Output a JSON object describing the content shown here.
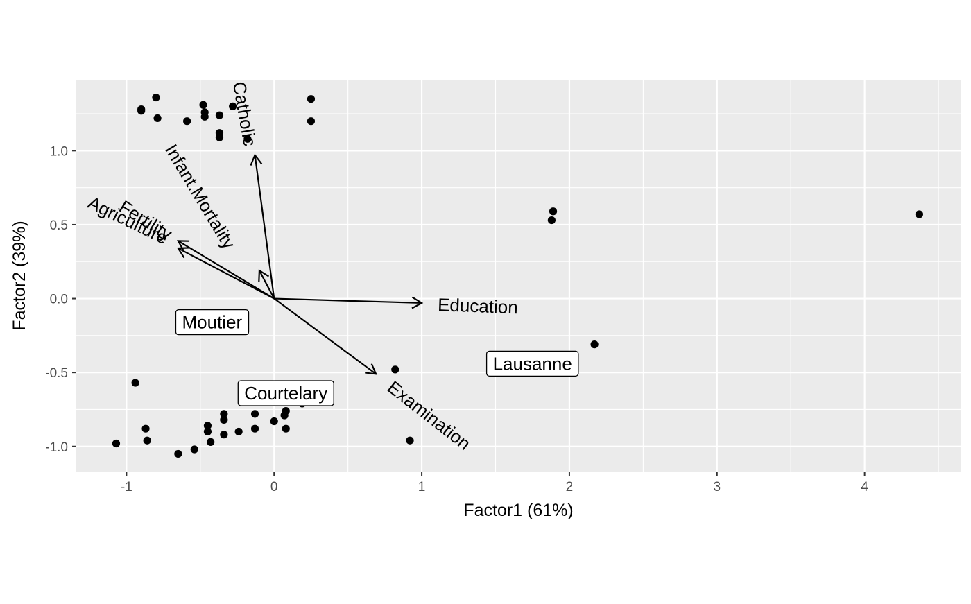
{
  "chart_data": {
    "type": "scatter",
    "subtype": "biplot",
    "title": "",
    "xlabel": "Factor1 (61%)",
    "ylabel": "Factor2 (39%)",
    "xlim": [
      -1.34,
      4.65
    ],
    "ylim": [
      -1.17,
      1.48
    ],
    "xticks": [
      -1,
      0,
      1,
      2,
      3,
      4
    ],
    "yticks": [
      -1.0,
      -0.5,
      0.0,
      0.5,
      1.0
    ],
    "xtick_labels": [
      "-1",
      "0",
      "1",
      "2",
      "3",
      "4"
    ],
    "ytick_labels": [
      "-1.0",
      "-0.5",
      "0.0",
      "0.5",
      "1.0"
    ],
    "grid": true,
    "panel_background": "#ebebeb",
    "grid_color": "#ffffff",
    "point_color": "#000000",
    "points": [
      {
        "x": -0.9,
        "y": 1.28
      },
      {
        "x": -0.9,
        "y": 1.27
      },
      {
        "x": -0.8,
        "y": 1.36
      },
      {
        "x": -0.79,
        "y": 1.22
      },
      {
        "x": -0.59,
        "y": 1.2
      },
      {
        "x": -0.48,
        "y": 1.31
      },
      {
        "x": -0.47,
        "y": 1.26
      },
      {
        "x": -0.47,
        "y": 1.23
      },
      {
        "x": -0.37,
        "y": 1.24
      },
      {
        "x": -0.37,
        "y": 1.12
      },
      {
        "x": -0.37,
        "y": 1.09
      },
      {
        "x": -0.28,
        "y": 1.3
      },
      {
        "x": -0.18,
        "y": 1.08
      },
      {
        "x": 0.25,
        "y": 1.35
      },
      {
        "x": 0.25,
        "y": 1.2
      },
      {
        "x": 1.88,
        "y": 0.53
      },
      {
        "x": 1.89,
        "y": 0.59
      },
      {
        "x": 4.37,
        "y": 0.57
      },
      {
        "x": 2.17,
        "y": -0.31
      },
      {
        "x": 0.82,
        "y": -0.48
      },
      {
        "x": 0.92,
        "y": -0.96
      },
      {
        "x": -0.94,
        "y": -0.57
      },
      {
        "x": -1.07,
        "y": -0.98
      },
      {
        "x": -0.87,
        "y": -0.88
      },
      {
        "x": -0.86,
        "y": -0.96
      },
      {
        "x": -0.65,
        "y": -1.05
      },
      {
        "x": -0.54,
        "y": -1.02
      },
      {
        "x": -0.45,
        "y": -0.86
      },
      {
        "x": -0.45,
        "y": -0.9
      },
      {
        "x": -0.43,
        "y": -0.97
      },
      {
        "x": -0.34,
        "y": -0.78
      },
      {
        "x": -0.34,
        "y": -0.82
      },
      {
        "x": -0.34,
        "y": -0.92
      },
      {
        "x": -0.24,
        "y": -0.9
      },
      {
        "x": -0.13,
        "y": -0.78
      },
      {
        "x": -0.13,
        "y": -0.88
      },
      {
        "x": 0.0,
        "y": -0.83
      },
      {
        "x": 0.07,
        "y": -0.79
      },
      {
        "x": 0.08,
        "y": -0.76
      },
      {
        "x": 0.08,
        "y": -0.88
      },
      {
        "x": 0.19,
        "y": -0.71
      }
    ],
    "loadings": [
      {
        "name": "Catholic",
        "x": -0.13,
        "y": 0.97,
        "label_x": -0.2,
        "label_y": 1.25,
        "angle": 80
      },
      {
        "name": "Infant.Mortality",
        "x": -0.1,
        "y": 0.19,
        "label_x": -0.5,
        "label_y": 0.69,
        "angle": 59
      },
      {
        "name": "Fertility",
        "x": -0.65,
        "y": 0.39,
        "label_x": -0.87,
        "label_y": 0.53,
        "angle": 32
      },
      {
        "name": "Agriculture",
        "x": -0.65,
        "y": 0.34,
        "label_x": -0.99,
        "label_y": 0.53,
        "angle": 26
      },
      {
        "name": "Education",
        "x": 1.0,
        "y": -0.03,
        "label_x": 1.38,
        "label_y": -0.05,
        "angle": 2
      },
      {
        "name": "Examination",
        "x": 0.69,
        "y": -0.51,
        "label_x": 1.05,
        "label_y": -0.79,
        "angle": 38
      }
    ],
    "labels": [
      {
        "text": "Moutier",
        "x": -0.42,
        "y": -0.16
      },
      {
        "text": "Courtelary",
        "x": 0.08,
        "y": -0.64
      },
      {
        "text": "Lausanne",
        "x": 1.75,
        "y": -0.44
      }
    ]
  }
}
